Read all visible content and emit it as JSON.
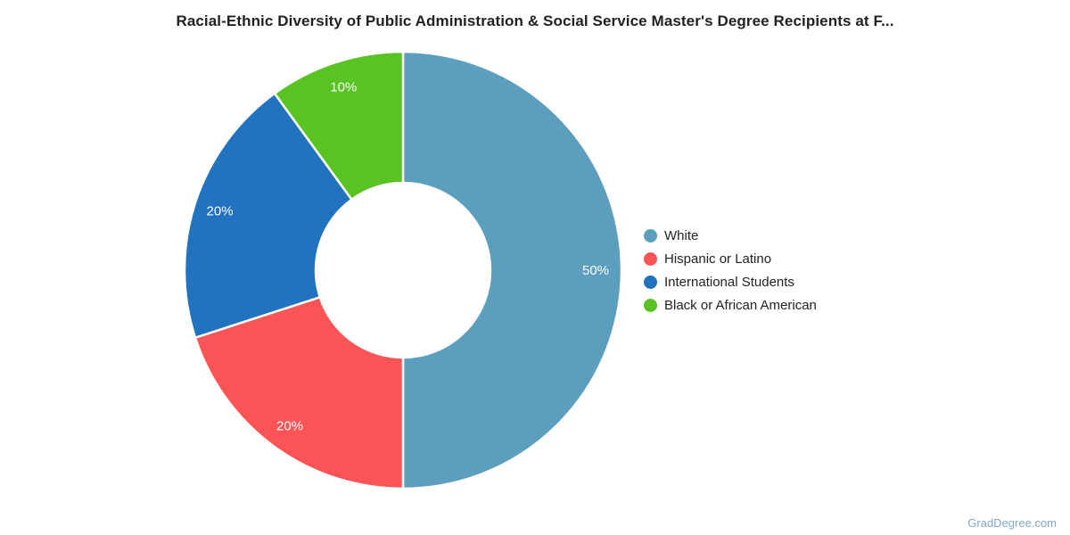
{
  "title": "Racial-Ethnic Diversity of Public Administration & Social Service Master's Degree Recipients at F...",
  "watermark": "GradDegree.com",
  "colors": {
    "title_text": "#212121",
    "legend_text": "#222222",
    "slice_label_text": "#ffffff",
    "watermark_text": "#84a5bf",
    "background": "#ffffff",
    "separator": "#ffffff"
  },
  "chart_data": {
    "type": "pie",
    "subtype": "donut",
    "title": "Racial-Ethnic Diversity of Public Administration & Social Service Master's Degree Recipients at F...",
    "categories": [
      "White",
      "Hispanic or Latino",
      "International Students",
      "Black or African American"
    ],
    "values": [
      50,
      20,
      20,
      10
    ],
    "unit": "%",
    "slice_labels": [
      "50%",
      "20%",
      "20%",
      "10%"
    ],
    "slice_colors": [
      "#5b9ebd",
      "#fa5457",
      "#2173bf",
      "#58c322"
    ],
    "start_angle_deg": 0,
    "direction": "clockwise",
    "inner_radius_ratio": 0.4,
    "legend_position": "right",
    "grid": false
  }
}
